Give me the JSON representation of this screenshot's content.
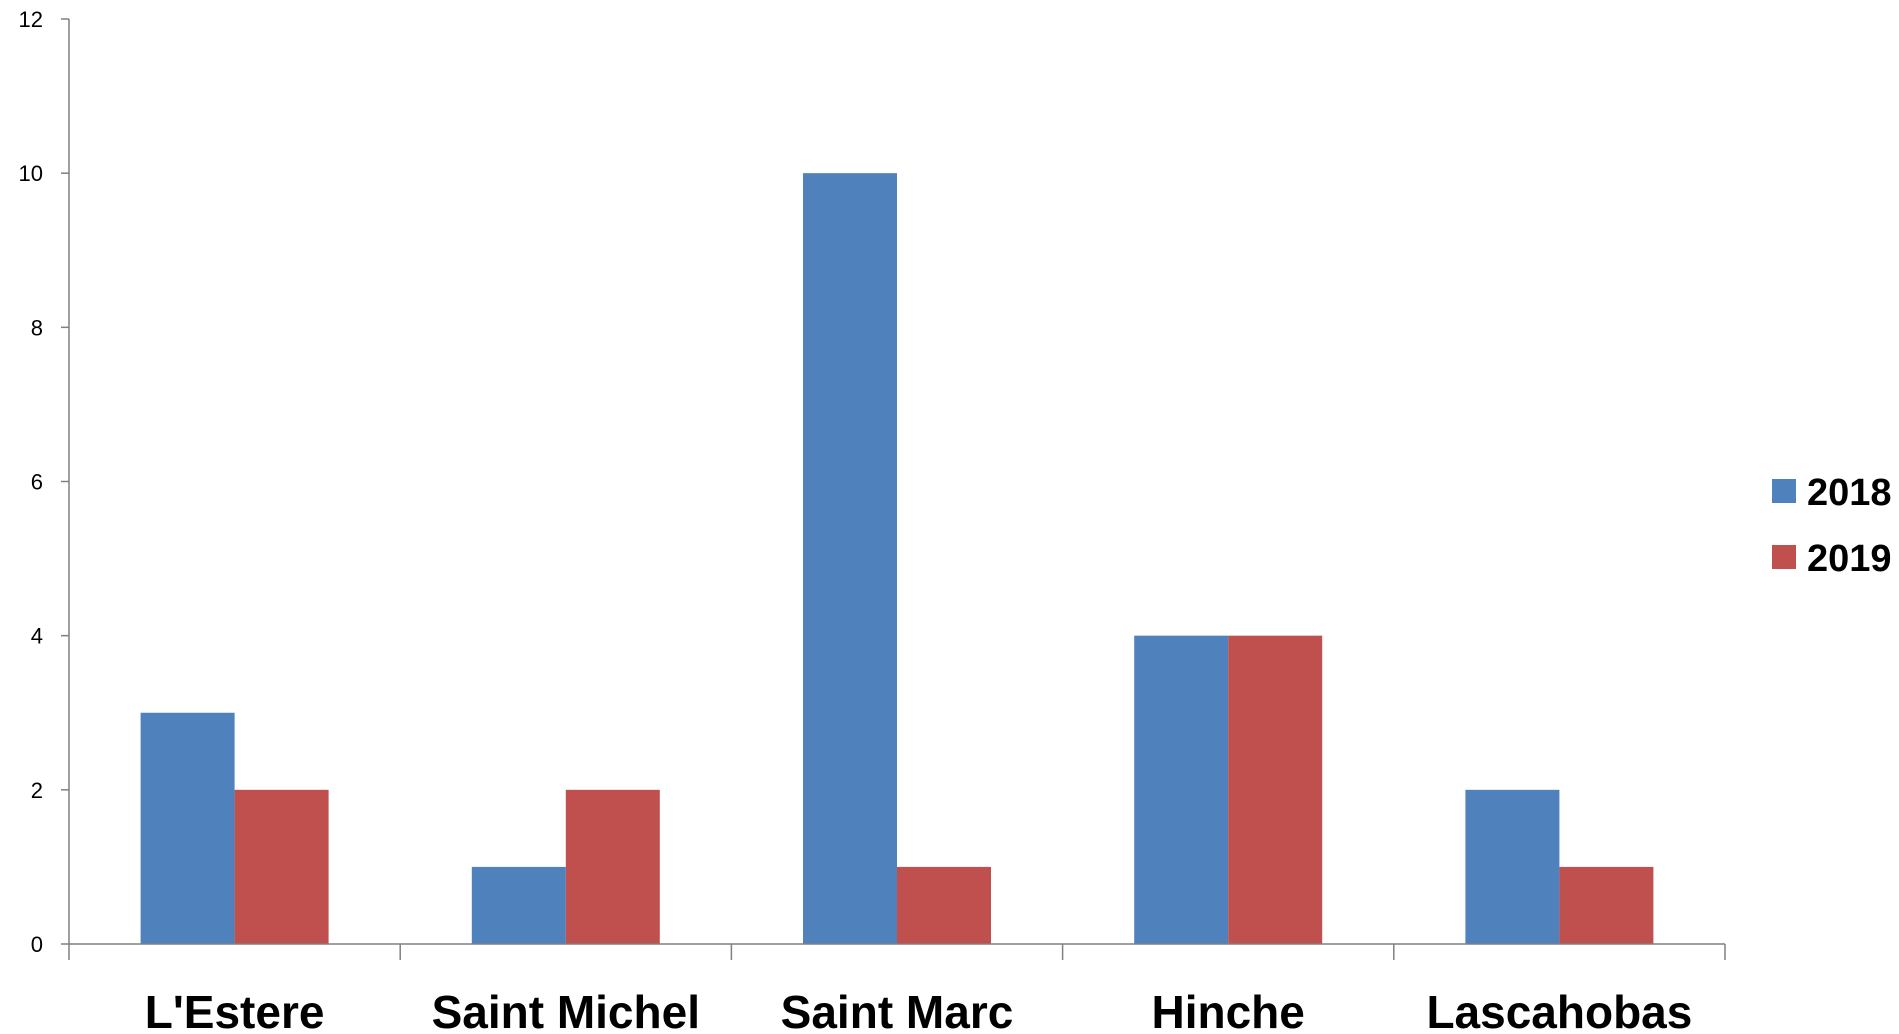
{
  "chart_data": {
    "type": "bar",
    "title": "",
    "xlabel": "",
    "ylabel": "",
    "categories": [
      "L'Estere",
      "Saint Michel",
      "Saint Marc",
      "Hinche",
      "Lascahobas"
    ],
    "series": [
      {
        "name": "2018",
        "color": "#4f81bd",
        "values": [
          3,
          1,
          10,
          4,
          2
        ]
      },
      {
        "name": "2019",
        "color": "#c0504d",
        "values": [
          2,
          2,
          1,
          4,
          1
        ]
      }
    ],
    "ylim": [
      0,
      12
    ],
    "yticks": [
      0,
      2,
      4,
      6,
      8,
      10,
      12
    ],
    "grid": false,
    "legend_position": "right"
  }
}
